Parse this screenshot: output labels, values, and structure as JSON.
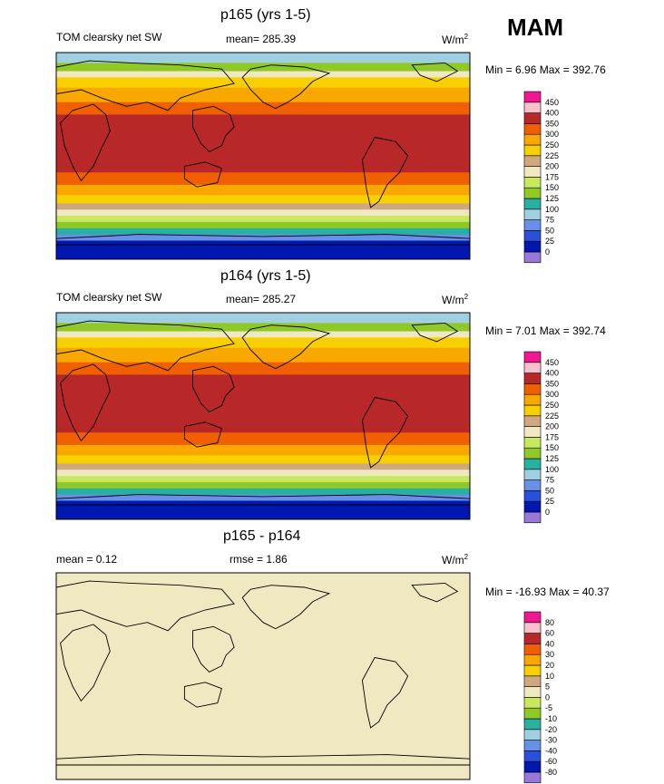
{
  "season": "MAM",
  "chart_data": [
    {
      "type": "heatmap",
      "title": "p165 (yrs 1-5)",
      "left_label": "TOM clearsky net SW",
      "center_label": "mean= 285.39",
      "units": "W/m",
      "units_sup": "2",
      "mean": 285.39,
      "min": 6.96,
      "max": 392.76,
      "minmax_min": "Min =   6.96",
      "minmax_max": "Max = 392.76",
      "legend_labels": [
        "0",
        "25",
        "50",
        "75",
        "100",
        "125",
        "150",
        "175",
        "200",
        "225",
        "250",
        "300",
        "350",
        "400",
        "450"
      ],
      "legend_colors": [
        "#9878d8",
        "#0018b0",
        "#2850d8",
        "#6890e8",
        "#a0d0e0",
        "#28b0a0",
        "#90c828",
        "#c8e860",
        "#f0e8c0",
        "#d0a880",
        "#f8d000",
        "#f8a800",
        "#f06000",
        "#b82828",
        "#f8c0c8",
        "#f01890"
      ]
    },
    {
      "type": "heatmap",
      "title": "p164 (yrs 1-5)",
      "left_label": "TOM clearsky net SW",
      "center_label": "mean= 285.27",
      "units": "W/m",
      "units_sup": "2",
      "mean": 285.27,
      "min": 7.01,
      "max": 392.74,
      "minmax_min": "Min =   7.01",
      "minmax_max": "Max = 392.74",
      "legend_labels": [
        "0",
        "25",
        "50",
        "75",
        "100",
        "125",
        "150",
        "175",
        "200",
        "225",
        "250",
        "300",
        "350",
        "400",
        "450"
      ],
      "legend_colors": [
        "#9878d8",
        "#0018b0",
        "#2850d8",
        "#6890e8",
        "#a0d0e0",
        "#28b0a0",
        "#90c828",
        "#c8e860",
        "#f0e8c0",
        "#d0a880",
        "#f8d000",
        "#f8a800",
        "#f06000",
        "#b82828",
        "#f8c0c8",
        "#f01890"
      ]
    },
    {
      "type": "heatmap",
      "title": "p165 - p164",
      "left_label": "mean =   0.12",
      "center_label": "rmse =   1.86",
      "units": "W/m",
      "units_sup": "2",
      "mean": 0.12,
      "rmse": 1.86,
      "min": -16.93,
      "max": 40.37,
      "minmax_min": "Min = -16.93",
      "minmax_max": "Max =  40.37",
      "legend_labels": [
        "-80",
        "-60",
        "-40",
        "-30",
        "-20",
        "-10",
        "-5",
        "0",
        "5",
        "10",
        "20",
        "30",
        "40",
        "60",
        "80"
      ],
      "legend_colors": [
        "#9878d8",
        "#0018b0",
        "#2850d8",
        "#6890e8",
        "#a0d0e0",
        "#28b0a0",
        "#90c828",
        "#c8e860",
        "#f0e8c0",
        "#d0a880",
        "#f8d000",
        "#f8a800",
        "#f06000",
        "#b82828",
        "#f8c0c8",
        "#f01890"
      ]
    }
  ]
}
